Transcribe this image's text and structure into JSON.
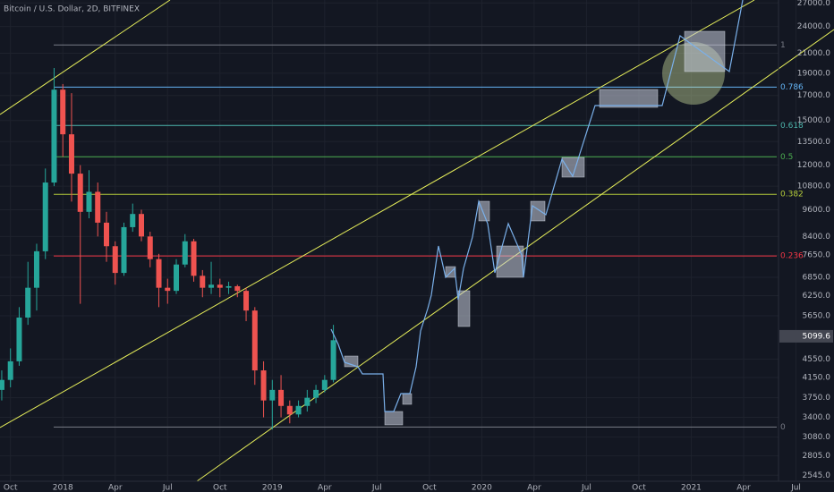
{
  "chart_data": {
    "type": "candlestick",
    "title": "Bitcoin / U.S. Dollar, 2D, BITFINEX",
    "log_scale": true,
    "grid": true,
    "up_color": "#26a69a",
    "down_color": "#ef5350",
    "xlim": [
      -3.6,
      41.0
    ],
    "xticks": [
      {
        "value": -3,
        "label": "Oct"
      },
      {
        "value": 0,
        "label": "2018"
      },
      {
        "value": 3,
        "label": "Apr"
      },
      {
        "value": 6,
        "label": "Jul"
      },
      {
        "value": 9,
        "label": "Oct"
      },
      {
        "value": 12,
        "label": "2019"
      },
      {
        "value": 15,
        "label": "Apr"
      },
      {
        "value": 18,
        "label": "Jul"
      },
      {
        "value": 21,
        "label": "Oct"
      },
      {
        "value": 24,
        "label": "2020"
      },
      {
        "value": 27,
        "label": "Apr"
      },
      {
        "value": 30,
        "label": "Jul"
      },
      {
        "value": 33,
        "label": "Oct"
      },
      {
        "value": 36,
        "label": "2021"
      },
      {
        "value": 39,
        "label": "Apr"
      },
      {
        "value": 42,
        "label": "Jul"
      }
    ],
    "ylim": [
      2470,
      27400
    ],
    "yticks": [
      {
        "value": 27000,
        "label": "27000.0"
      },
      {
        "value": 24000,
        "label": "24000.0"
      },
      {
        "value": 21000,
        "label": "21000.0"
      },
      {
        "value": 19000,
        "label": "19000.0"
      },
      {
        "value": 17000,
        "label": "17000.0"
      },
      {
        "value": 15000,
        "label": "15000.0"
      },
      {
        "value": 13500,
        "label": "13500.0"
      },
      {
        "value": 12000,
        "label": "12000.0"
      },
      {
        "value": 10800,
        "label": "10800.0"
      },
      {
        "value": 9600,
        "label": "9600.0"
      },
      {
        "value": 8400,
        "label": "8400.0"
      },
      {
        "value": 7650,
        "label": "7650.0"
      },
      {
        "value": 6850,
        "label": "6850.0"
      },
      {
        "value": 6250,
        "label": "6250.0"
      },
      {
        "value": 5650,
        "label": "5650.0"
      },
      {
        "value": 4550,
        "label": "4550.0"
      },
      {
        "value": 4150,
        "label": "4150.0"
      },
      {
        "value": 3750,
        "label": "3750.0"
      },
      {
        "value": 3400,
        "label": "3400.0"
      },
      {
        "value": 3080,
        "label": "3080.0"
      },
      {
        "value": 2805,
        "label": "2805.0"
      },
      {
        "value": 2545,
        "label": "2545.0"
      }
    ],
    "last_price": 5099.6,
    "x": [
      -3.5,
      -3,
      -2.5,
      -2,
      -1.5,
      -1,
      -0.5,
      0,
      0.5,
      1,
      1.5,
      2,
      2.5,
      3,
      3.5,
      4,
      4.5,
      5,
      5.5,
      6,
      6.5,
      7,
      7.5,
      8,
      8.5,
      9,
      9.5,
      10,
      10.5,
      11,
      11.5,
      12,
      12.5,
      13,
      13.5,
      14,
      14.5,
      15,
      15.5
    ],
    "open": [
      3900,
      4100,
      4500,
      5600,
      6500,
      7800,
      11000,
      17500,
      14000,
      11500,
      9500,
      10500,
      9000,
      8000,
      7000,
      8800,
      9400,
      8400,
      7500,
      6500,
      6400,
      7300,
      8200,
      6900,
      6500,
      6600,
      6500,
      6550,
      6400,
      5800,
      4300,
      3700,
      3900,
      3600,
      3450,
      3600,
      3750,
      3900,
      4100
    ],
    "high": [
      4300,
      4800,
      5900,
      7400,
      8100,
      11800,
      19500,
      18000,
      17200,
      12000,
      11700,
      11000,
      9500,
      8200,
      9000,
      9900,
      9600,
      8600,
      7700,
      6800,
      7500,
      8500,
      8300,
      7100,
      7400,
      6800,
      6700,
      6600,
      6500,
      5900,
      4500,
      4100,
      4200,
      3700,
      3700,
      3900,
      4000,
      4200,
      5400
    ],
    "low": [
      3700,
      3950,
      4400,
      5400,
      5800,
      7500,
      10800,
      12500,
      10000,
      6000,
      9200,
      8400,
      7400,
      6600,
      6900,
      8600,
      8200,
      7200,
      5900,
      6000,
      6300,
      7200,
      6700,
      6200,
      6300,
      6200,
      6300,
      6200,
      5500,
      4000,
      3400,
      3200,
      3400,
      3300,
      3400,
      3500,
      3650,
      3850,
      4050
    ],
    "close": [
      4100,
      4500,
      5600,
      6500,
      7800,
      11000,
      17500,
      14000,
      11500,
      9500,
      10500,
      9000,
      8000,
      7000,
      8800,
      9400,
      8400,
      7500,
      6500,
      6400,
      7300,
      8200,
      6900,
      6500,
      6600,
      6500,
      6550,
      6400,
      5800,
      4300,
      3700,
      3900,
      3600,
      3450,
      3600,
      3750,
      3900,
      4100,
      5000
    ],
    "fib_levels": [
      {
        "label": "1",
        "value": 21880,
        "color": "#787b86"
      },
      {
        "label": "0.786",
        "value": 17730,
        "color": "#64b5f6"
      },
      {
        "label": "0.618",
        "value": 14630,
        "color": "#4db6ac"
      },
      {
        "label": "0.5",
        "value": 12510,
        "color": "#4caf50"
      },
      {
        "label": "0.382",
        "value": 10370,
        "color": "#b5cc3a"
      },
      {
        "label": "0.236",
        "value": 7620,
        "color": "#f23645"
      },
      {
        "label": "0",
        "value": 3240,
        "color": "#787b86"
      }
    ]
  }
}
